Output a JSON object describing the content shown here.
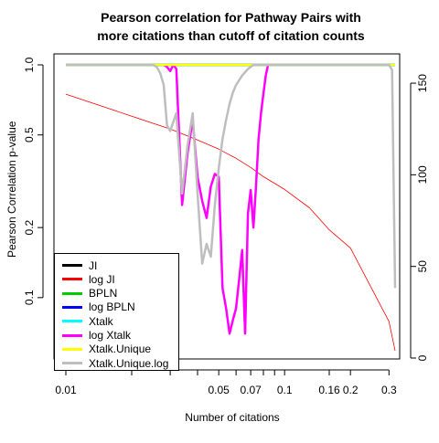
{
  "chart_data": {
    "type": "line",
    "title": "Pearson correlation for Pathway Pairs with",
    "title_line2": "more citations than cutoff of citation counts",
    "xlabel": "Number of citations",
    "ylabel": "Pearson Correlation p-value",
    "x_scale": "log",
    "y_scale": "log",
    "xlim": [
      0.01,
      0.32
    ],
    "ylim": [
      0.055,
      1.0
    ],
    "y2lim": [
      0,
      160
    ],
    "x_ticks": [
      0.01,
      0.02,
      0.03,
      0.04,
      0.05,
      0.06,
      0.07,
      0.08,
      0.09,
      0.1,
      0.16,
      0.2,
      0.3
    ],
    "x_tick_labels": [
      "0.01",
      "0.05",
      "0.07",
      "0.1",
      "0.16",
      "0.2",
      "0.3"
    ],
    "x_tick_label_values": [
      0.01,
      0.05,
      0.07,
      0.1,
      0.16,
      0.2,
      0.3
    ],
    "y_ticks": [
      1.0,
      0.5,
      0.2,
      0.1
    ],
    "y_tick_labels": [
      "1.0",
      "0.5",
      "0.2",
      "0.1"
    ],
    "y2_ticks": [
      0,
      50,
      100,
      150
    ],
    "y2_tick_labels": [
      "0",
      "50",
      "100",
      "150"
    ],
    "legend_position": "bottom-left",
    "series": [
      {
        "name": "JI",
        "color": "#000000",
        "axis": "left",
        "x": [
          0.01,
          0.32
        ],
        "y": [
          1.0,
          1.0
        ]
      },
      {
        "name": "log JI",
        "color": "#ff0000",
        "axis": "right",
        "x": [
          0.01,
          0.02,
          0.03,
          0.04,
          0.05,
          0.06,
          0.07,
          0.08,
          0.1,
          0.13,
          0.16,
          0.2,
          0.3,
          0.32
        ],
        "y": [
          144,
          132,
          125,
          119,
          114,
          109,
          104,
          99,
          92,
          82,
          70,
          60,
          20,
          4
        ]
      },
      {
        "name": "BPLN",
        "color": "#00cc00",
        "axis": "left",
        "x": [
          0.01,
          0.32
        ],
        "y": [
          1.0,
          1.0
        ]
      },
      {
        "name": "log BPLN",
        "color": "#0000ff",
        "axis": "left",
        "x": [
          0.01,
          0.32
        ],
        "y": [
          1.0,
          1.0
        ]
      },
      {
        "name": "Xtalk",
        "color": "#00ffff",
        "axis": "left",
        "x": [
          0.01,
          0.32
        ],
        "y": [
          1.0,
          1.0
        ]
      },
      {
        "name": "log Xtalk",
        "color": "#ff00ff",
        "axis": "left",
        "x": [
          0.028,
          0.029,
          0.03,
          0.031,
          0.032,
          0.034,
          0.036,
          0.038,
          0.04,
          0.042,
          0.044,
          0.046,
          0.048,
          0.05,
          0.052,
          0.054,
          0.056,
          0.058,
          0.06,
          0.062,
          0.064,
          0.066,
          0.068,
          0.07,
          0.072,
          0.074,
          0.076,
          0.078,
          0.08,
          0.082,
          0.084
        ],
        "y": [
          1.0,
          0.98,
          0.94,
          1.0,
          0.96,
          0.25,
          0.42,
          0.58,
          0.33,
          0.26,
          0.22,
          0.3,
          0.34,
          0.33,
          0.11,
          0.09,
          0.07,
          0.08,
          0.09,
          0.12,
          0.16,
          0.07,
          0.23,
          0.29,
          0.2,
          0.3,
          0.48,
          0.62,
          0.75,
          0.9,
          1.0
        ]
      },
      {
        "name": "Xtalk.Unique",
        "color": "#ffff00",
        "axis": "left",
        "x": [
          0.01,
          0.32
        ],
        "y": [
          1.0,
          1.0
        ]
      },
      {
        "name": "Xtalk.Unique.log",
        "color": "#bebebe",
        "axis": "left",
        "x": [
          0.01,
          0.025,
          0.026,
          0.027,
          0.028,
          0.029,
          0.03,
          0.032,
          0.034,
          0.036,
          0.038,
          0.04,
          0.042,
          0.044,
          0.046,
          0.048,
          0.05,
          0.052,
          0.054,
          0.056,
          0.058,
          0.06,
          0.064,
          0.068,
          0.072,
          0.076,
          0.08,
          0.09,
          0.1,
          0.2,
          0.3,
          0.31,
          0.32
        ],
        "y": [
          1.0,
          1.0,
          0.98,
          0.92,
          0.82,
          0.55,
          0.52,
          0.62,
          0.28,
          0.45,
          0.62,
          0.28,
          0.14,
          0.17,
          0.15,
          0.25,
          0.36,
          0.48,
          0.58,
          0.68,
          0.76,
          0.82,
          0.9,
          0.96,
          1.0,
          1.0,
          1.0,
          1.0,
          1.0,
          1.0,
          1.0,
          0.95,
          0.11
        ]
      }
    ]
  }
}
